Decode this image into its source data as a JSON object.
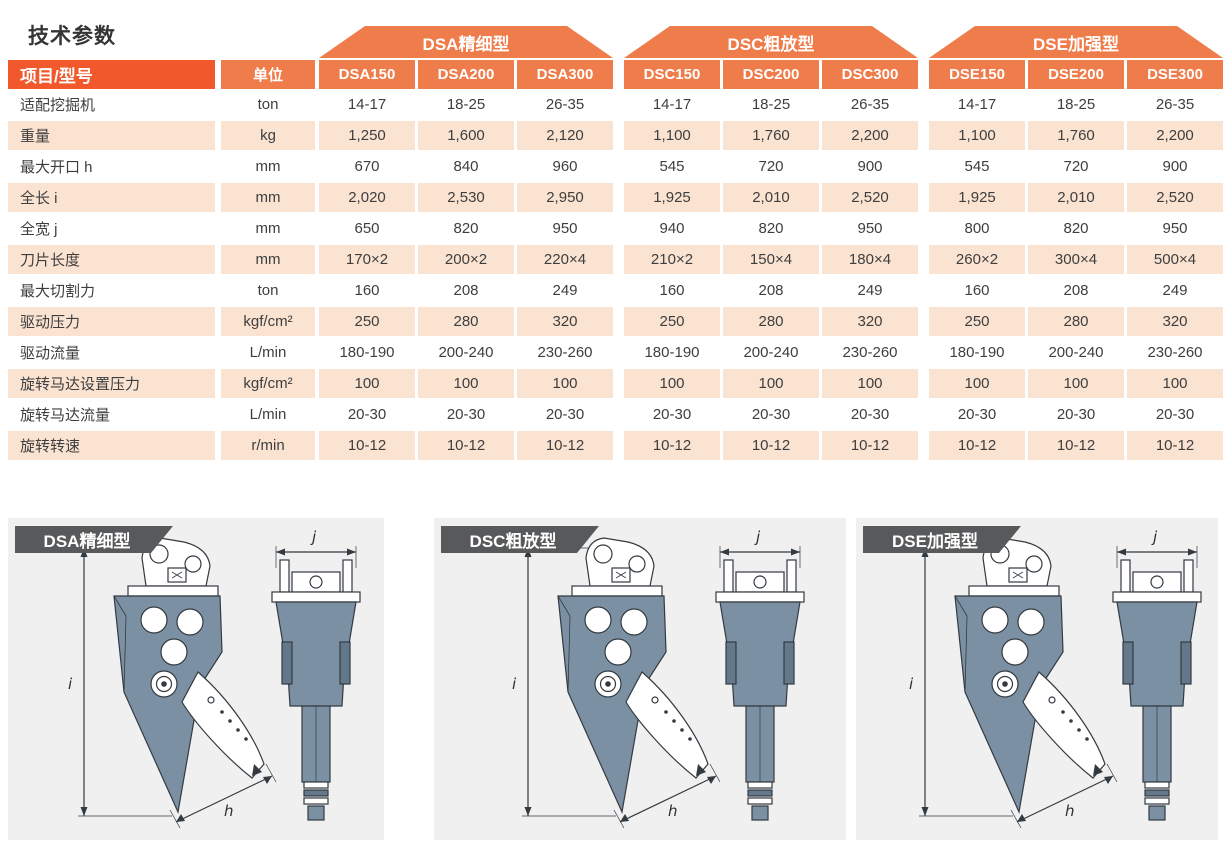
{
  "page": {
    "title": "技术参数"
  },
  "colors": {
    "header_dark_orange": "#F1582B",
    "header_light_orange": "#EF7C4B",
    "row_stripe_peach": "#FBE3D2",
    "cell_text": "#3E3E3E",
    "banner_gray": "#58595B",
    "panel_gray": "#F0F0F0",
    "machine_body_slate": "#7C90A4"
  },
  "table": {
    "corner_label": "项目/型号",
    "unit_label": "单位",
    "groups": [
      {
        "name": "DSA精细型",
        "models": [
          "DSA150",
          "DSA200",
          "DSA300"
        ]
      },
      {
        "name": "DSC粗放型",
        "models": [
          "DSC150",
          "DSC200",
          "DSC300"
        ]
      },
      {
        "name": "DSE加强型",
        "models": [
          "DSE150",
          "DSE200",
          "DSE300"
        ]
      }
    ],
    "rows": [
      {
        "label": "适配挖掘机",
        "unit": "ton",
        "values": [
          "14-17",
          "18-25",
          "26-35",
          "14-17",
          "18-25",
          "26-35",
          "14-17",
          "18-25",
          "26-35"
        ]
      },
      {
        "label": "重量",
        "unit": "kg",
        "values": [
          "1,250",
          "1,600",
          "2,120",
          "1,100",
          "1,760",
          "2,200",
          "1,100",
          "1,760",
          "2,200"
        ]
      },
      {
        "label": "最大开口 h",
        "unit": "mm",
        "values": [
          "670",
          "840",
          "960",
          "545",
          "720",
          "900",
          "545",
          "720",
          "900"
        ]
      },
      {
        "label": "全长 i",
        "unit": "mm",
        "values": [
          "2,020",
          "2,530",
          "2,950",
          "1,925",
          "2,010",
          "2,520",
          "1,925",
          "2,010",
          "2,520"
        ]
      },
      {
        "label": "全宽 j",
        "unit": "mm",
        "values": [
          "650",
          "820",
          "950",
          "940",
          "820",
          "950",
          "800",
          "820",
          "950"
        ]
      },
      {
        "label": "刀片长度",
        "unit": "mm",
        "values": [
          "170×2",
          "200×2",
          "220×4",
          "210×2",
          "150×4",
          "180×4",
          "260×2",
          "300×4",
          "500×4"
        ]
      },
      {
        "label": "最大切割力",
        "unit": "ton",
        "values": [
          "160",
          "208",
          "249",
          "160",
          "208",
          "249",
          "160",
          "208",
          "249"
        ]
      },
      {
        "label": "驱动压力",
        "unit": "kgf/cm²",
        "values": [
          "250",
          "280",
          "320",
          "250",
          "280",
          "320",
          "250",
          "280",
          "320"
        ]
      },
      {
        "label": "驱动流量",
        "unit": "L/min",
        "values": [
          "180-190",
          "200-240",
          "230-260",
          "180-190",
          "200-240",
          "230-260",
          "180-190",
          "200-240",
          "230-260"
        ]
      },
      {
        "label": "旋转马达设置压力",
        "unit": "kgf/cm²",
        "values": [
          "100",
          "100",
          "100",
          "100",
          "100",
          "100",
          "100",
          "100",
          "100"
        ]
      },
      {
        "label": "旋转马达流量",
        "unit": "L/min",
        "values": [
          "20-30",
          "20-30",
          "20-30",
          "20-30",
          "20-30",
          "20-30",
          "20-30",
          "20-30",
          "20-30"
        ]
      },
      {
        "label": "旋转转速",
        "unit": "r/min",
        "values": [
          "10-12",
          "10-12",
          "10-12",
          "10-12",
          "10-12",
          "10-12",
          "10-12",
          "10-12",
          "10-12"
        ]
      }
    ]
  },
  "diagrams": {
    "panels": [
      {
        "label": "DSA精细型"
      },
      {
        "label": "DSC粗放型"
      },
      {
        "label": "DSE加强型"
      }
    ],
    "dimension_labels": {
      "overall_length": "i",
      "max_opening": "h",
      "overall_width": "j"
    }
  }
}
